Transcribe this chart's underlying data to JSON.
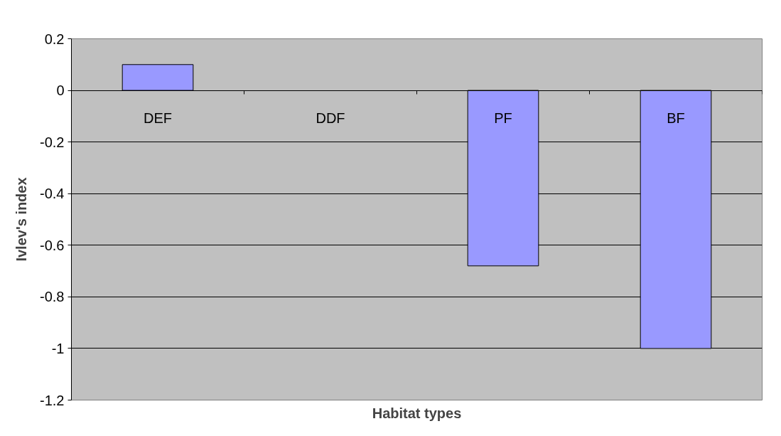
{
  "chart_data": {
    "type": "bar",
    "xlabel": "Habitat types",
    "ylabel": "Ivlev's index",
    "categories": [
      "DEF",
      "DDF",
      "PF",
      "BF"
    ],
    "values": [
      0.1,
      null,
      -0.68,
      -1
    ],
    "color": "#9999ff",
    "ylim": [
      -1.2,
      0.2
    ],
    "yticks": [
      0.2,
      0,
      -0.2,
      -0.4,
      -0.6,
      -0.8,
      -1,
      -1.2
    ],
    "grid": "y"
  }
}
